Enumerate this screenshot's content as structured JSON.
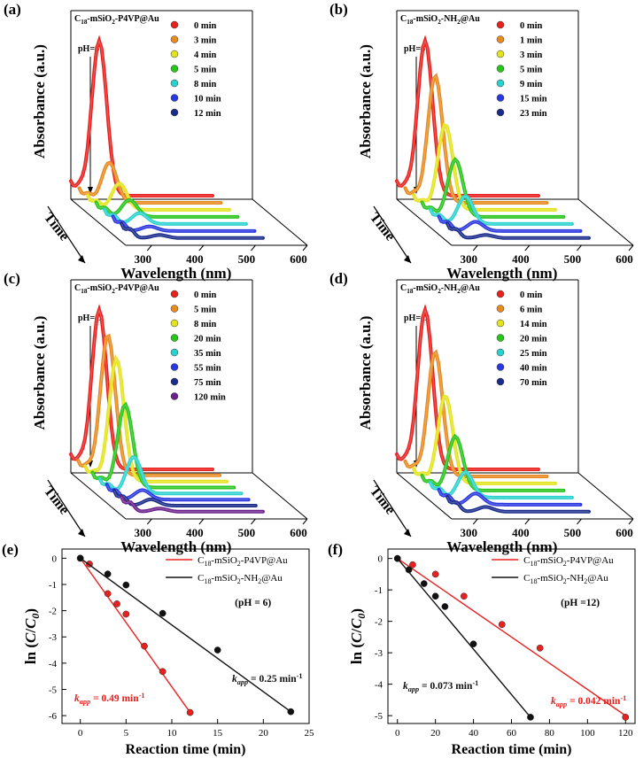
{
  "colors": {
    "red": "#e8201e",
    "orange": "#e88a1f",
    "yellow": "#e3e41e",
    "green": "#27c41c",
    "cyan": "#2ad2cf",
    "blue": "#2a36e0",
    "navy": "#1a2a8a",
    "purple": "#6a1f8a",
    "black": "#111111"
  },
  "chart_data": [
    {
      "panel": "(a)",
      "type": "line",
      "style": "3d-waterfall",
      "title": "C18-mSiO2-P4VP@Au",
      "annotation": "pH=6",
      "xlabel": "Wavelength (nm)",
      "ylabel": "Absorbance (a.u.)",
      "zlabel": "Time",
      "xticks": [
        "300",
        "400",
        "500",
        "600"
      ],
      "series": [
        {
          "name": "0 min",
          "color": "red",
          "peak": 1.0
        },
        {
          "name": "3 min",
          "color": "orange",
          "peak": 0.26
        },
        {
          "name": "4 min",
          "color": "yellow",
          "peak": 0.17
        },
        {
          "name": "5 min",
          "color": "green",
          "peak": 0.11
        },
        {
          "name": "8 min",
          "color": "cyan",
          "peak": 0.07
        },
        {
          "name": "10 min",
          "color": "blue",
          "peak": 0.03
        },
        {
          "name": "12 min",
          "color": "navy",
          "peak": 0.02
        }
      ]
    },
    {
      "panel": "(b)",
      "type": "line",
      "style": "3d-waterfall",
      "title": "C18-mSiO2-NH2@Au",
      "annotation": "pH=6",
      "xlabel": "Wavelength (nm)",
      "ylabel": "Absorbance (a.u.)",
      "zlabel": "Time",
      "xticks": [
        "300",
        "400",
        "500",
        "600"
      ],
      "series": [
        {
          "name": "0 min",
          "color": "red",
          "peak": 1.0
        },
        {
          "name": "1 min",
          "color": "orange",
          "peak": 0.82
        },
        {
          "name": "3 min",
          "color": "yellow",
          "peak": 0.55
        },
        {
          "name": "5 min",
          "color": "green",
          "peak": 0.37
        },
        {
          "name": "9 min",
          "color": "cyan",
          "peak": 0.18
        },
        {
          "name": "15 min",
          "color": "blue",
          "peak": 0.06
        },
        {
          "name": "23 min",
          "color": "navy",
          "peak": 0.02
        }
      ]
    },
    {
      "panel": "(c)",
      "type": "line",
      "style": "3d-waterfall",
      "title": "C18-mSiO2-P4VP@Au",
      "annotation": "pH=12",
      "xlabel": "Wavelength (nm)",
      "ylabel": "Absorbance (a.u.)",
      "zlabel": "Time",
      "xticks": [
        "300",
        "400",
        "500",
        "600"
      ],
      "series": [
        {
          "name": "0 min",
          "color": "red",
          "peak": 1.0
        },
        {
          "name": "5 min",
          "color": "orange",
          "peak": 0.88
        },
        {
          "name": "8 min",
          "color": "yellow",
          "peak": 0.77
        },
        {
          "name": "20 min",
          "color": "green",
          "peak": 0.52
        },
        {
          "name": "35 min",
          "color": "cyan",
          "peak": 0.23
        },
        {
          "name": "55 min",
          "color": "blue",
          "peak": 0.06
        },
        {
          "name": "75 min",
          "color": "navy",
          "peak": 0.04
        },
        {
          "name": "120 min",
          "color": "purple",
          "peak": 0.02
        }
      ]
    },
    {
      "panel": "(d)",
      "type": "line",
      "style": "3d-waterfall",
      "title": "C18-mSiO2-NH2@Au",
      "annotation": "pH=12",
      "xlabel": "Wavelength (nm)",
      "ylabel": "Absorbance (a.u.)",
      "zlabel": "Time",
      "xticks": [
        "300",
        "400",
        "500",
        "600"
      ],
      "series": [
        {
          "name": "0 min",
          "color": "red",
          "peak": 1.0
        },
        {
          "name": "6 min",
          "color": "orange",
          "peak": 0.78
        },
        {
          "name": "14 min",
          "color": "yellow",
          "peak": 0.55
        },
        {
          "name": "20 min",
          "color": "green",
          "peak": 0.34
        },
        {
          "name": "25 min",
          "color": "cyan",
          "peak": 0.16
        },
        {
          "name": "40 min",
          "color": "blue",
          "peak": 0.07
        },
        {
          "name": "70 min",
          "color": "navy",
          "peak": 0.03
        }
      ]
    },
    {
      "panel": "(e)",
      "type": "scatter",
      "xlabel": "Reaction time (min)",
      "ylabel": "ln (C/C0)",
      "xlim": [
        -2,
        25
      ],
      "ylim": [
        -6.3,
        0.35
      ],
      "xticks": [
        0,
        5,
        10,
        15,
        20,
        25
      ],
      "yticks": [
        0,
        -1,
        -2,
        -3,
        -4,
        -5,
        -6
      ],
      "condition": "(pH = 6)",
      "series": [
        {
          "name": "C18-mSiO2-P4VP@Au",
          "color": "red",
          "x": [
            0,
            1,
            3,
            4,
            5,
            7,
            9,
            12
          ],
          "y": [
            0,
            -0.22,
            -1.35,
            -1.74,
            -2.13,
            -3.35,
            -4.32,
            -5.88
          ],
          "fit": {
            "x": [
              0,
              12
            ],
            "y": [
              0,
              -5.88
            ]
          },
          "rate": "kapp = 0.49 min-1"
        },
        {
          "name": "C18-mSiO2-NH2@Au",
          "color": "black",
          "x": [
            0,
            3,
            5,
            9,
            15,
            23
          ],
          "y": [
            0,
            -0.6,
            -1.02,
            -2.1,
            -3.5,
            -5.85
          ],
          "fit": {
            "x": [
              0,
              23
            ],
            "y": [
              0,
              -5.85
            ]
          },
          "rate": "kapp = 0.25 min-1"
        }
      ]
    },
    {
      "panel": "(f)",
      "type": "scatter",
      "xlabel": "Reaction time (min)",
      "ylabel": "ln (C/C0)",
      "xlim": [
        -5,
        125
      ],
      "ylim": [
        -5.25,
        0.3
      ],
      "xticks": [
        0,
        20,
        40,
        60,
        80,
        100,
        120
      ],
      "yticks": [
        0,
        -1,
        -2,
        -3,
        -4,
        -5
      ],
      "condition": "(pH =12)",
      "series": [
        {
          "name": "C18-mSiO2-P4VP@Au",
          "color": "red",
          "x": [
            0,
            8,
            20,
            35,
            55,
            75,
            120
          ],
          "y": [
            0,
            -0.2,
            -0.5,
            -1.2,
            -2.1,
            -2.85,
            -5.05
          ],
          "fit": {
            "x": [
              0,
              120
            ],
            "y": [
              0,
              -5.0
            ]
          },
          "rate": "kapp = 0.042 min-1"
        },
        {
          "name": "C18-mSiO2-NH2@Au",
          "color": "black",
          "x": [
            0,
            6,
            14,
            20,
            25,
            40,
            70
          ],
          "y": [
            0,
            -0.36,
            -0.8,
            -1.2,
            -1.53,
            -2.72,
            -5.05
          ],
          "fit": {
            "x": [
              0,
              70
            ],
            "y": [
              0,
              -5.05
            ]
          },
          "rate": "kapp = 0.073 min-1"
        }
      ]
    }
  ]
}
